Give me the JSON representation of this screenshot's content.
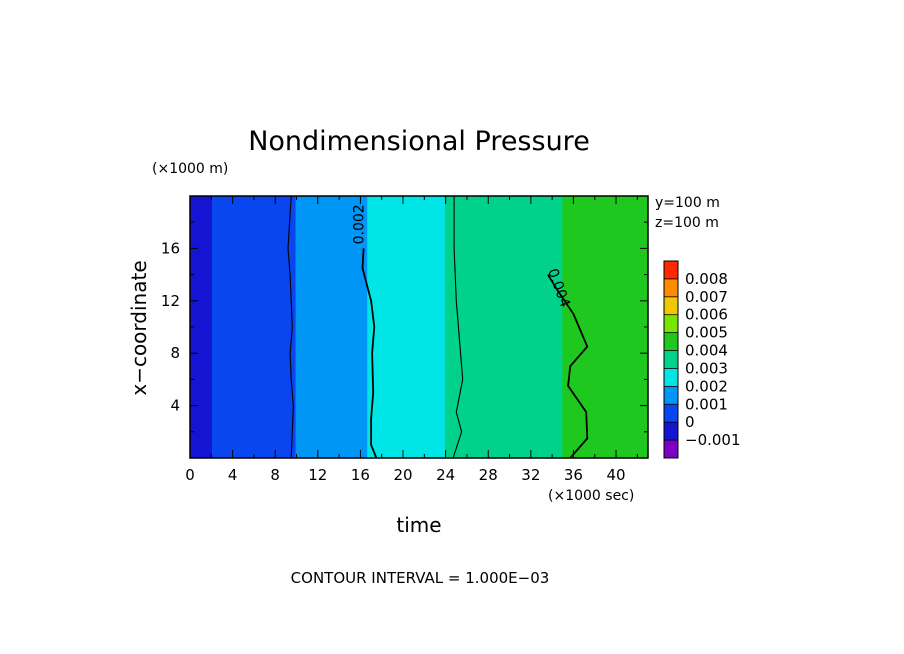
{
  "chart_data": {
    "type": "heatmap",
    "title": "Nondimensional Pressure",
    "xlabel": "time",
    "ylabel": "x−coordinate",
    "x_unit": "(×1000 sec)",
    "y_unit": "(×1000 m)",
    "xlim": [
      0,
      43
    ],
    "ylim": [
      0,
      20
    ],
    "x_ticks": [
      "0",
      "4",
      "8",
      "12",
      "16",
      "20",
      "24",
      "28",
      "32",
      "36",
      "40"
    ],
    "y_ticks": [
      "4",
      "8",
      "12",
      "16"
    ],
    "annotations": [
      "y=100 m",
      "z=100 m"
    ],
    "colorbar": {
      "levels": [
        "−0.001",
        "0",
        "0.001",
        "0.002",
        "0.003",
        "0.004",
        "0.005",
        "0.006",
        "0.007",
        "0.008"
      ],
      "colors": [
        "#7a00c8",
        "#1414d2",
        "#0a46f0",
        "#0096f5",
        "#00e6e6",
        "#00d28c",
        "#1ec81e",
        "#78e600",
        "#f0c800",
        "#ff8c00",
        "#ff2800"
      ]
    },
    "field_profile": {
      "time": [
        0,
        4,
        5,
        6,
        8,
        10,
        12,
        14,
        16,
        17,
        18,
        20,
        24,
        26,
        28,
        32,
        34,
        36,
        38,
        40,
        43
      ],
      "value": [
        -0.0003,
        0.0003,
        0.0004,
        0.0006,
        0.0008,
        0.001,
        0.0012,
        0.0015,
        0.0018,
        0.0021,
        0.0024,
        0.0027,
        0.003,
        0.0032,
        0.0034,
        0.0037,
        0.0039,
        0.0041,
        0.0043,
        0.0044,
        0.0045
      ]
    },
    "contours": [
      {
        "level": 0.001,
        "label": "",
        "x": [
          9.5,
          9.6,
          9.7,
          9.5,
          9.4,
          9.6,
          9.5,
          9.4,
          9.2,
          9.5
        ],
        "y": [
          0,
          2,
          4,
          6,
          8,
          10,
          12,
          14,
          16,
          20
        ]
      },
      {
        "level": 0.002,
        "label": "0.002",
        "x": [
          17.5,
          17.0,
          17.0,
          17.2,
          17.1,
          17.3,
          17.0,
          16.2,
          16.3
        ],
        "y": [
          0,
          1,
          3,
          5,
          8,
          10,
          12,
          14.5,
          16
        ]
      },
      {
        "level": 0.003,
        "label": "",
        "x": [
          24.7,
          25.5,
          25.0,
          25.6,
          25.3,
          25.0,
          24.8,
          24.8
        ],
        "y": [
          0,
          2,
          3.5,
          6,
          9,
          12,
          16,
          20
        ]
      },
      {
        "level": 0.004,
        "label": "0.004",
        "x": [
          35.7,
          37.3,
          37.2,
          35.5,
          35.7,
          37.3,
          36.0,
          34.5,
          33.6
        ],
        "y": [
          0,
          1.5,
          3.5,
          5.5,
          7,
          8.5,
          11,
          12.8,
          14
        ]
      }
    ],
    "contour_interval_text": "CONTOUR INTERVAL = 1.000E−03"
  }
}
